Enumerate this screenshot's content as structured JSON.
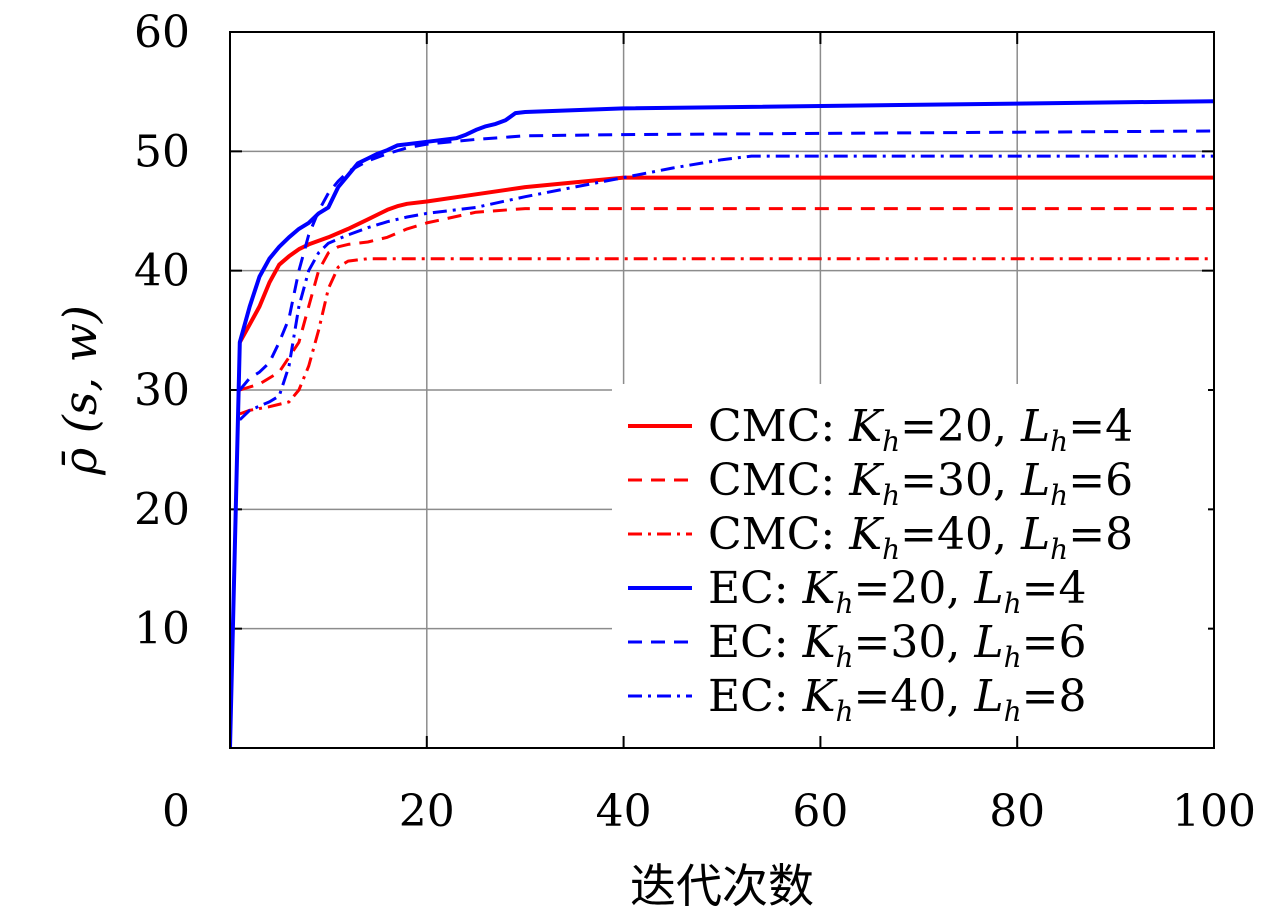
{
  "chart_data": {
    "type": "line",
    "title": "",
    "xlabel": "迭代次数",
    "ylabel": "ρ̄ (s, w)",
    "xlim": [
      0,
      100
    ],
    "ylim": [
      0,
      60
    ],
    "xticks": [
      "0",
      "20",
      "40",
      "60",
      "80",
      "100"
    ],
    "yticks": [
      "10",
      "20",
      "30",
      "40",
      "50",
      "60"
    ],
    "grid": true,
    "legend_position": "bottom-right",
    "series": [
      {
        "name": "CMC: Kh=20, Lh=4",
        "label_prefix": "CMC: ",
        "k_var": "K",
        "k_sub": "h",
        "k_val": "=20, ",
        "l_var": "L",
        "l_sub": "h",
        "l_val": "=4",
        "color": "#ff0000",
        "style": "solid",
        "x": [
          1,
          2,
          3,
          4,
          5,
          6,
          7,
          8,
          10,
          12,
          14,
          16,
          17,
          18,
          20,
          25,
          30,
          35,
          40,
          100
        ],
        "y": [
          34,
          35.5,
          37,
          39,
          40.5,
          41.2,
          41.8,
          42.2,
          42.8,
          43.5,
          44.3,
          45.1,
          45.4,
          45.6,
          45.8,
          46.4,
          47,
          47.4,
          47.8,
          47.8
        ]
      },
      {
        "name": "CMC: Kh=30, Lh=6",
        "label_prefix": "CMC: ",
        "k_var": "K",
        "k_sub": "h",
        "k_val": "=30, ",
        "l_var": "L",
        "l_sub": "h",
        "l_val": "=6",
        "color": "#ff0000",
        "style": "dashed",
        "x": [
          1,
          3,
          5,
          7,
          8,
          9,
          10,
          11,
          12,
          14,
          16,
          18,
          20,
          25,
          30,
          100
        ],
        "y": [
          30,
          30.5,
          31.5,
          34,
          37,
          40,
          41.5,
          42,
          42.2,
          42.4,
          42.8,
          43.5,
          44,
          44.9,
          45.2,
          45.2
        ]
      },
      {
        "name": "CMC: Kh=40, Lh=8",
        "label_prefix": "CMC: ",
        "k_var": "K",
        "k_sub": "h",
        "k_val": "=40, ",
        "l_var": "L",
        "l_sub": "h",
        "l_val": "=8",
        "color": "#ff0000",
        "style": "dashdot",
        "x": [
          1,
          2,
          4,
          6,
          7,
          8,
          9,
          10,
          11,
          12,
          13,
          14,
          100
        ],
        "y": [
          28,
          28.3,
          28.6,
          29,
          30,
          32,
          35,
          38.5,
          40.3,
          40.8,
          40.9,
          41,
          41
        ]
      },
      {
        "name": "EC: Kh=20, Lh=4",
        "label_prefix": "EC: ",
        "k_var": "K",
        "k_sub": "h",
        "k_val": "=20, ",
        "l_var": "L",
        "l_sub": "h",
        "l_val": "=4",
        "color": "#0000ff",
        "style": "solid",
        "x": [
          0,
          1,
          2,
          3,
          4,
          5,
          6,
          7,
          8,
          9,
          10,
          11,
          12,
          13,
          14,
          15,
          16,
          17,
          18,
          20,
          23,
          24,
          25,
          26,
          27,
          28,
          29,
          30,
          40,
          100
        ],
        "y": [
          0,
          34,
          37,
          39.5,
          41,
          42,
          42.8,
          43.5,
          44,
          44.8,
          45.3,
          47,
          48,
          49,
          49.4,
          49.8,
          50.1,
          50.5,
          50.6,
          50.8,
          51.1,
          51.4,
          51.8,
          52.1,
          52.3,
          52.6,
          53.2,
          53.3,
          53.6,
          54.2
        ]
      },
      {
        "name": "EC: Kh=30, Lh=6",
        "label_prefix": "EC: ",
        "k_var": "K",
        "k_sub": "h",
        "k_val": "=30, ",
        "l_var": "L",
        "l_sub": "h",
        "l_val": "=6",
        "color": "#0000ff",
        "style": "dashed",
        "x": [
          1,
          2,
          3,
          4,
          5,
          6,
          7,
          8,
          9,
          10,
          11,
          12,
          14,
          16,
          18,
          20,
          25,
          30,
          40,
          60,
          100
        ],
        "y": [
          30,
          31,
          31.5,
          32.3,
          34,
          36,
          40,
          43,
          45,
          46.5,
          47.5,
          48.3,
          49.2,
          49.8,
          50.3,
          50.6,
          51,
          51.3,
          51.4,
          51.5,
          51.7
        ]
      },
      {
        "name": "EC: Kh=40, Lh=8",
        "label_prefix": "EC: ",
        "k_var": "K",
        "k_sub": "h",
        "k_val": "=40, ",
        "l_var": "L",
        "l_sub": "h",
        "l_val": "=8",
        "color": "#0000ff",
        "style": "dashdot",
        "x": [
          1,
          2,
          4,
          5,
          6,
          7,
          8,
          9,
          10,
          12,
          14,
          16,
          18,
          20,
          25,
          30,
          35,
          40,
          45,
          50,
          53,
          60,
          100
        ],
        "y": [
          27.5,
          28.3,
          29,
          29.5,
          32,
          37,
          40,
          41.5,
          42.3,
          43,
          43.6,
          44.1,
          44.5,
          44.8,
          45.3,
          46.2,
          47,
          47.8,
          48.6,
          49.3,
          49.6,
          49.6,
          49.6
        ]
      }
    ]
  }
}
